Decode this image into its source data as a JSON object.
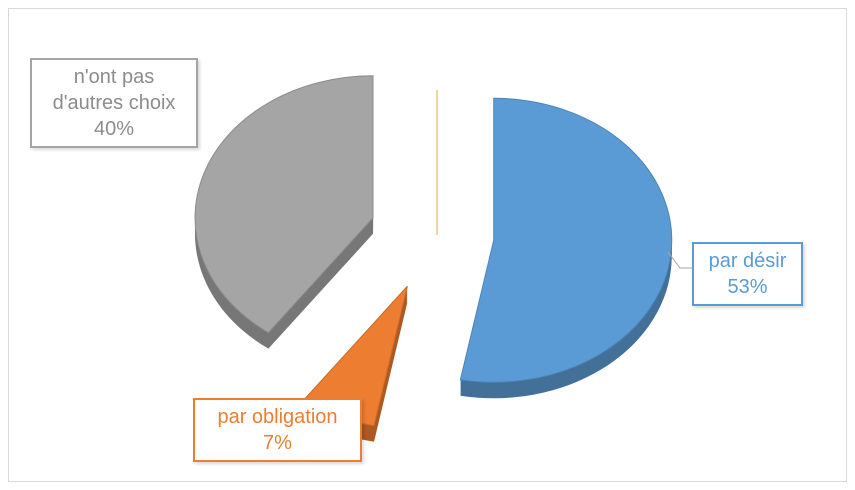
{
  "chart_data": {
    "type": "pie",
    "categories": [
      "par désir",
      "par obligation",
      "n'ont pas d'autres choix"
    ],
    "values": [
      53,
      7,
      40
    ],
    "value_labels": [
      "53%",
      "7%",
      "40%"
    ],
    "colors": [
      "#5b9bd5",
      "#ed7d31",
      "#a5a5a5"
    ]
  }
}
